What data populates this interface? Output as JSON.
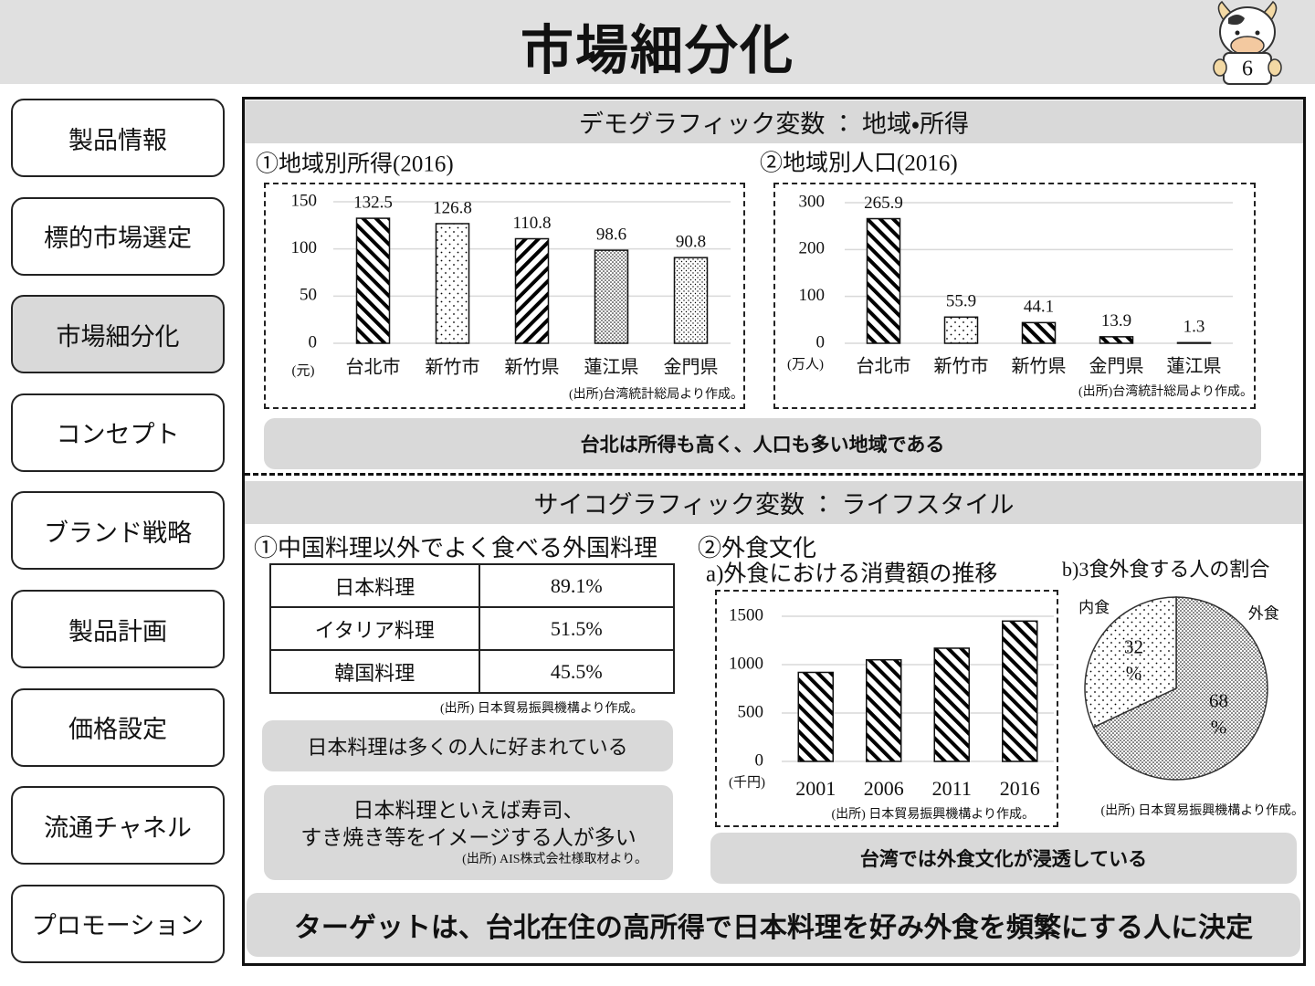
{
  "header": {
    "title": "市場細分化",
    "page": 6
  },
  "nav": [
    "製品情報",
    "標的市場選定",
    "市場細分化",
    "コンセプト",
    "ブランド戦略",
    "製品計画",
    "価格設定",
    "流通チャネル",
    "プロモーション"
  ],
  "section1": {
    "title": "デモグラフィック変数 ： 地域・所得",
    "summary": "台北は所得も高く、人口も多い地域である"
  },
  "section2": {
    "title": "サイコグラフィック変数 ： ライフスタイル",
    "heading1": "①中国料理以外でよく食べる外国料理",
    "heading2": "②外食文化",
    "table": {
      "rows": [
        [
          "日本料理",
          "89.1%"
        ],
        [
          "イタリア料理",
          "51.5%"
        ],
        [
          "韓国料理",
          "45.5%"
        ]
      ]
    },
    "table_source": "(出所) 日本貿易振興機構より作成。",
    "note1": "日本料理は多くの人に好まれている",
    "note2": "日本料理といえば寿司、\nすき焼き等をイメージする人が多い",
    "note2_source": "(出所) AIS株式会社様取材より。",
    "summary": "台湾では外食文化が浸透している"
  },
  "conclusion": "ターゲットは、台北在住の高所得で日本料理を好み外食を頻繁にする人に決定",
  "chart_data": [
    {
      "type": "bar",
      "title": "①地域別所得(2016)",
      "categories": [
        "台北市",
        "新竹市",
        "新竹県",
        "蓮江県",
        "金門県"
      ],
      "values": [
        132.5,
        126.8,
        110.8,
        98.6,
        90.8
      ],
      "ylim": [
        0,
        150
      ],
      "yticks": [
        0,
        50,
        100,
        150
      ],
      "unit_label": "(元)",
      "source": "(出所)台湾統計総局より作成。",
      "grid": true,
      "data_labels": true,
      "patterns": [
        "diagonal-back",
        "dots",
        "diagonal",
        "dots-dense",
        "dots-fine"
      ]
    },
    {
      "type": "bar",
      "title": "②地域別人口(2016)",
      "categories": [
        "台北市",
        "新竹市",
        "新竹県",
        "金門県",
        "蓮江県"
      ],
      "values": [
        265.9,
        55.9,
        44.1,
        13.9,
        1.3
      ],
      "ylim": [
        0,
        300
      ],
      "yticks": [
        0,
        100,
        200,
        300
      ],
      "unit_label": "(万人)",
      "source": "(出所)台湾統計総局より作成。",
      "grid": true,
      "data_labels": true,
      "patterns": [
        "diagonal-back",
        "dots",
        "diagonal-back",
        "diagonal-back",
        "dots-fine"
      ]
    },
    {
      "type": "bar",
      "title": "a)外食における消費額の推移",
      "categories": [
        "2001",
        "2006",
        "2011",
        "2016"
      ],
      "values": [
        920,
        1050,
        1170,
        1450
      ],
      "ylim": [
        0,
        1500
      ],
      "yticks": [
        0,
        500,
        1000,
        1500
      ],
      "unit_label": "(千円)",
      "source": "(出所) 日本貿易振興機構より作成。",
      "grid": true,
      "data_labels": false,
      "patterns": [
        "diagonal-back",
        "diagonal-back",
        "diagonal-back",
        "diagonal-back"
      ]
    },
    {
      "type": "pie",
      "title": "b)3食外食する人の割合",
      "categories": [
        "外食",
        "内食"
      ],
      "values": [
        68,
        32
      ],
      "value_labels": [
        "68%",
        "32%"
      ],
      "source": "(出所) 日本貿易振興機構より作成。",
      "patterns": [
        "dots-dense",
        "dots"
      ]
    }
  ]
}
